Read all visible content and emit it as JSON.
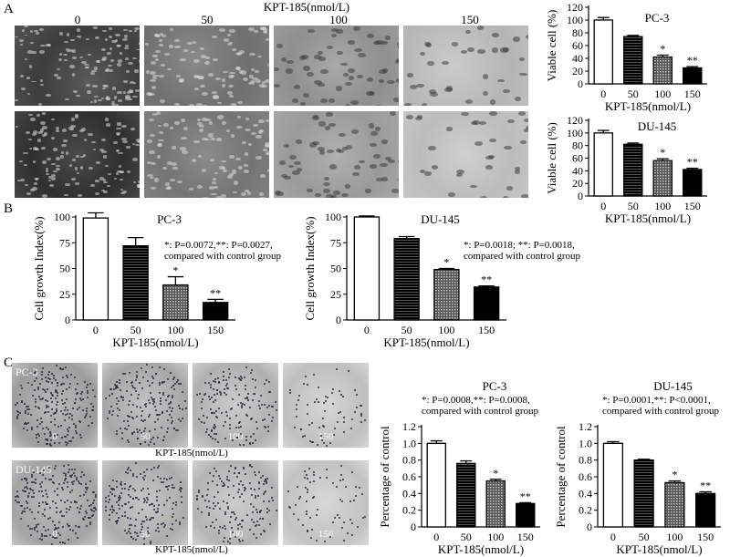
{
  "figure": {
    "panel_a": "A",
    "panel_b": "B",
    "panel_c": "C"
  },
  "panel_a": {
    "drug_label": "KPT-185(nmol/L)",
    "concentrations": [
      "0",
      "50",
      "100",
      "150"
    ]
  },
  "panel_c": {
    "drug_label_1": "KPT-185(nmol/L)",
    "drug_label_2": "KPT-185(nmol/L)",
    "row1_cell_line": "PC-3",
    "row2_cell_line": "DU-145",
    "concentrations": [
      "0",
      "50",
      "100",
      "150"
    ]
  },
  "colors": {
    "micro_dark": "#4a4a4a",
    "micro_mid": "#7b7b7b",
    "micro_light": "#b8b8b8",
    "dish": "#c6c6c6"
  },
  "chart_data": [
    {
      "id": "a_pc3",
      "type": "bar",
      "title": "PC-3",
      "xlabel": "KPT-185(nmol/L)",
      "ylabel": "Viable cell (%)",
      "categories": [
        "0",
        "50",
        "100",
        "150"
      ],
      "values": [
        100,
        74,
        42,
        25
      ],
      "errors": [
        4,
        2,
        3,
        2
      ],
      "sig": [
        "",
        "",
        "*",
        "**"
      ],
      "ylim": [
        0,
        120
      ],
      "yticks": [
        "0",
        "20",
        "40",
        "60",
        "80",
        "100",
        "120"
      ]
    },
    {
      "id": "a_du145",
      "type": "bar",
      "title": "DU-145",
      "xlabel": "KPT-185(nmol/L)",
      "ylabel": "Viable cell (%)",
      "categories": [
        "0",
        "50",
        "100",
        "150"
      ],
      "values": [
        100,
        82,
        56,
        42
      ],
      "errors": [
        4,
        2,
        3,
        2
      ],
      "sig": [
        "",
        "",
        "*",
        "**"
      ],
      "ylim": [
        0,
        120
      ],
      "yticks": [
        "0",
        "20",
        "40",
        "60",
        "80",
        "100",
        "120"
      ]
    },
    {
      "id": "b_pc3",
      "type": "bar",
      "title": "PC-3",
      "xlabel": "KPT-185(nmol/L)",
      "ylabel": "Cell growth Index(%)",
      "categories": [
        "0",
        "50",
        "100",
        "150"
      ],
      "values": [
        99,
        72,
        34,
        17
      ],
      "errors": [
        5,
        8,
        8,
        3
      ],
      "sig": [
        "",
        "",
        "*",
        "**"
      ],
      "ylim": [
        0,
        100
      ],
      "yticks": [
        "0",
        "25",
        "50",
        "75",
        "100"
      ],
      "annotation": [
        "*: P=0.0072,**: P=0.0027,",
        "compared with control group"
      ]
    },
    {
      "id": "b_du145",
      "type": "bar",
      "title": "DU-145",
      "xlabel": "KPT-185(nmol/L)",
      "ylabel": "Cell growth Index(%)",
      "categories": [
        "0",
        "50",
        "100",
        "150"
      ],
      "values": [
        100,
        79,
        49,
        32
      ],
      "errors": [
        1,
        2,
        1,
        1
      ],
      "sig": [
        "",
        "",
        "*",
        "**"
      ],
      "ylim": [
        0,
        100
      ],
      "yticks": [
        "0",
        "25",
        "50",
        "75",
        "100"
      ],
      "annotation": [
        "*: P=0.0018; **: P=0.0018,",
        "compared with control group"
      ]
    },
    {
      "id": "c_pc3",
      "type": "bar",
      "title": "PC-3",
      "xlabel": "KPT-185(nmol/L)",
      "ylabel": "Percentage of control",
      "categories": [
        "0",
        "50",
        "100",
        "150"
      ],
      "values": [
        1.0,
        0.76,
        0.55,
        0.28
      ],
      "errors": [
        0.03,
        0.03,
        0.02,
        0.01
      ],
      "sig": [
        "",
        "",
        "*",
        "**"
      ],
      "ylim": [
        0,
        1.2
      ],
      "yticks": [
        "0",
        "0.2",
        "0.4",
        "0.6",
        "0.8",
        "1.0",
        "1.2"
      ],
      "annotation": [
        "*: P=0.0008,**: P=0.0008,",
        "compared with control group"
      ]
    },
    {
      "id": "c_du145",
      "type": "bar",
      "title": "DU-145",
      "xlabel": "KPT-185(nmol/L)",
      "ylabel": "Percentage of control",
      "categories": [
        "0",
        "50",
        "100",
        "150"
      ],
      "values": [
        1.0,
        0.8,
        0.53,
        0.4
      ],
      "errors": [
        0.02,
        0.01,
        0.02,
        0.02
      ],
      "sig": [
        "",
        "",
        "*",
        "**"
      ],
      "ylim": [
        0,
        1.2
      ],
      "yticks": [
        "0",
        "0.2",
        "0.4",
        "0.6",
        "0.8",
        "1.0",
        "1.2"
      ],
      "annotation": [
        "*: P=0.0001,**: P<0.0001,",
        "compared with control group"
      ]
    }
  ]
}
